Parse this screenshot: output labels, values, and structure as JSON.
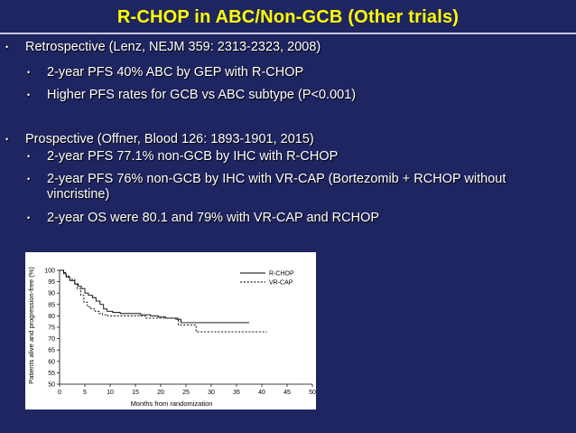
{
  "slide": {
    "title": "R-CHOP in ABC/Non-GCB (Other trials)",
    "bullets": [
      {
        "level": 1,
        "text": "Retrospective (Lenz, NEJM 359: 2313-2323, 2008)"
      },
      {
        "level": 2,
        "text": "2-year PFS 40% ABC by GEP with R-CHOP"
      },
      {
        "level": 2,
        "text": "Higher PFS rates for GCB vs ABC subtype (P<0.001)"
      },
      {
        "level": 1,
        "text": "Prospective (Offner, Blood 126: 1893-1901, 2015)"
      },
      {
        "level": 2,
        "text": "2-year PFS 77.1% non-GCB by IHC with R-CHOP"
      },
      {
        "level": 2,
        "text": "2-year PFS  76% non-GCB by IHC with VR-CAP (Bortezomib + RCHOP without vincristine)"
      },
      {
        "level": 2,
        "text": "2-year OS were 80.1 and 79% with VR-CAP and RCHOP"
      }
    ],
    "colors": {
      "background": "#1f2560",
      "title": "#ffff00",
      "text": "#ffffff"
    }
  },
  "chart_data": {
    "type": "line",
    "title": "",
    "xlabel": "Months from randomization",
    "ylabel": "Patients alive and progression-free (%)",
    "xlim": [
      0,
      50
    ],
    "ylim": [
      50,
      100
    ],
    "xticks": [
      0,
      5,
      10,
      15,
      20,
      25,
      30,
      35,
      40,
      45,
      50
    ],
    "yticks": [
      50,
      55,
      60,
      65,
      70,
      75,
      80,
      85,
      90,
      95,
      100
    ],
    "legend_position": "top-right",
    "series": [
      {
        "name": "R-CHOP",
        "style": "solid",
        "x": [
          0,
          0.8,
          1.3,
          2,
          3,
          3.7,
          4.3,
          5,
          5.7,
          6.5,
          7.2,
          8,
          8.7,
          9.4,
          10.5,
          12,
          14,
          16,
          18,
          19.5,
          21,
          23,
          24,
          26,
          28,
          30,
          33,
          36,
          37.5
        ],
        "y": [
          100,
          98.5,
          97,
          95.5,
          94,
          93,
          92,
          90,
          89,
          88,
          86.5,
          85,
          83,
          82,
          81.5,
          81,
          81,
          80.5,
          80,
          79.5,
          79,
          78.5,
          77,
          77,
          77,
          77,
          77,
          77,
          77
        ]
      },
      {
        "name": "VR-CAP",
        "style": "dashed",
        "x": [
          0,
          0.8,
          1.3,
          2,
          3,
          3.5,
          4.2,
          4.8,
          5.5,
          6.2,
          7,
          7.8,
          8.5,
          9.5,
          11,
          13,
          15,
          17,
          20,
          22,
          23.5,
          25,
          27,
          29,
          31,
          33,
          36,
          39,
          41
        ],
        "y": [
          100,
          99,
          97.5,
          96,
          94,
          92,
          89,
          86,
          84,
          83,
          82,
          81,
          80.5,
          80,
          80,
          80,
          80,
          79,
          79,
          79,
          76,
          76,
          73,
          73,
          73,
          73,
          73,
          73,
          73
        ]
      }
    ]
  }
}
